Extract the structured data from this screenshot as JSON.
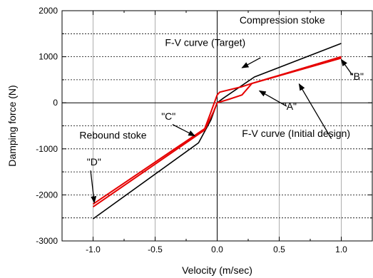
{
  "chart_data": {
    "type": "line",
    "xlabel": "Velocity (m/sec)",
    "ylabel": "Damping force (N)",
    "xlim": [
      -1.25,
      1.25
    ],
    "ylim": [
      -3000,
      2000
    ],
    "xticks": [
      "-1.0",
      "-0.5",
      "0.0",
      "0.5",
      "1.0"
    ],
    "xtick_values": [
      -1.0,
      -0.5,
      0.0,
      0.5,
      1.0
    ],
    "yticks": [
      "-3000",
      "-2000",
      "-1000",
      "0",
      "1000",
      "2000"
    ],
    "ytick_values": [
      -3000,
      -2000,
      -1000,
      0,
      1000,
      2000
    ],
    "grid": true,
    "series": [
      {
        "color": "#000000",
        "x": [
          -1.0,
          -0.15,
          -0.05,
          0.0,
          0.05,
          0.3,
          1.0
        ],
        "y": [
          -2520,
          -870,
          -370,
          0,
          100,
          560,
          1290
        ]
      },
      {
        "color": "#e60000",
        "x": [
          -1.0,
          -0.1,
          -0.05,
          0.0,
          0.02,
          0.2,
          0.28,
          1.0
        ],
        "y": [
          -2200,
          -560,
          -200,
          170,
          230,
          350,
          420,
          1000
        ]
      },
      {
        "color": "#e60000",
        "x": [
          -1.0,
          -0.1,
          -0.03,
          0.0,
          0.1,
          0.2,
          0.28,
          1.0
        ],
        "y": [
          -2260,
          -590,
          -200,
          0,
          80,
          170,
          420,
          970
        ]
      }
    ],
    "annotations": [
      {
        "text": "Compression stoke",
        "x": 0.18,
        "y": 1720
      },
      {
        "text": "F-V curve (Target)",
        "x": -0.42,
        "y": 1230
      },
      {
        "text": "F-V curve (Initial design)",
        "x": 0.2,
        "y": -740
      },
      {
        "text": "Rebound stoke",
        "x": -1.11,
        "y": -780
      },
      {
        "text": "\"A\"",
        "x": 0.53,
        "y": -150
      },
      {
        "text": "\"B\"",
        "x": 1.07,
        "y": 500
      },
      {
        "text": "\"C\"",
        "x": -0.45,
        "y": -370
      },
      {
        "text": "\"D\"",
        "x": -1.05,
        "y": -1360
      }
    ],
    "arrows": [
      {
        "from": [
          0.35,
          980
        ],
        "to": [
          0.2,
          760
        ]
      },
      {
        "from": [
          0.56,
          -75
        ],
        "to": [
          0.34,
          260
        ]
      },
      {
        "from": [
          0.92,
          -780
        ],
        "to": [
          0.66,
          410
        ]
      },
      {
        "from": [
          1.09,
          600
        ],
        "to": [
          1.0,
          940
        ]
      },
      {
        "from": [
          -0.36,
          -470
        ],
        "to": [
          -0.18,
          -720
        ]
      },
      {
        "from": [
          -1.02,
          -1470
        ],
        "to": [
          -0.99,
          -2170
        ]
      }
    ]
  }
}
